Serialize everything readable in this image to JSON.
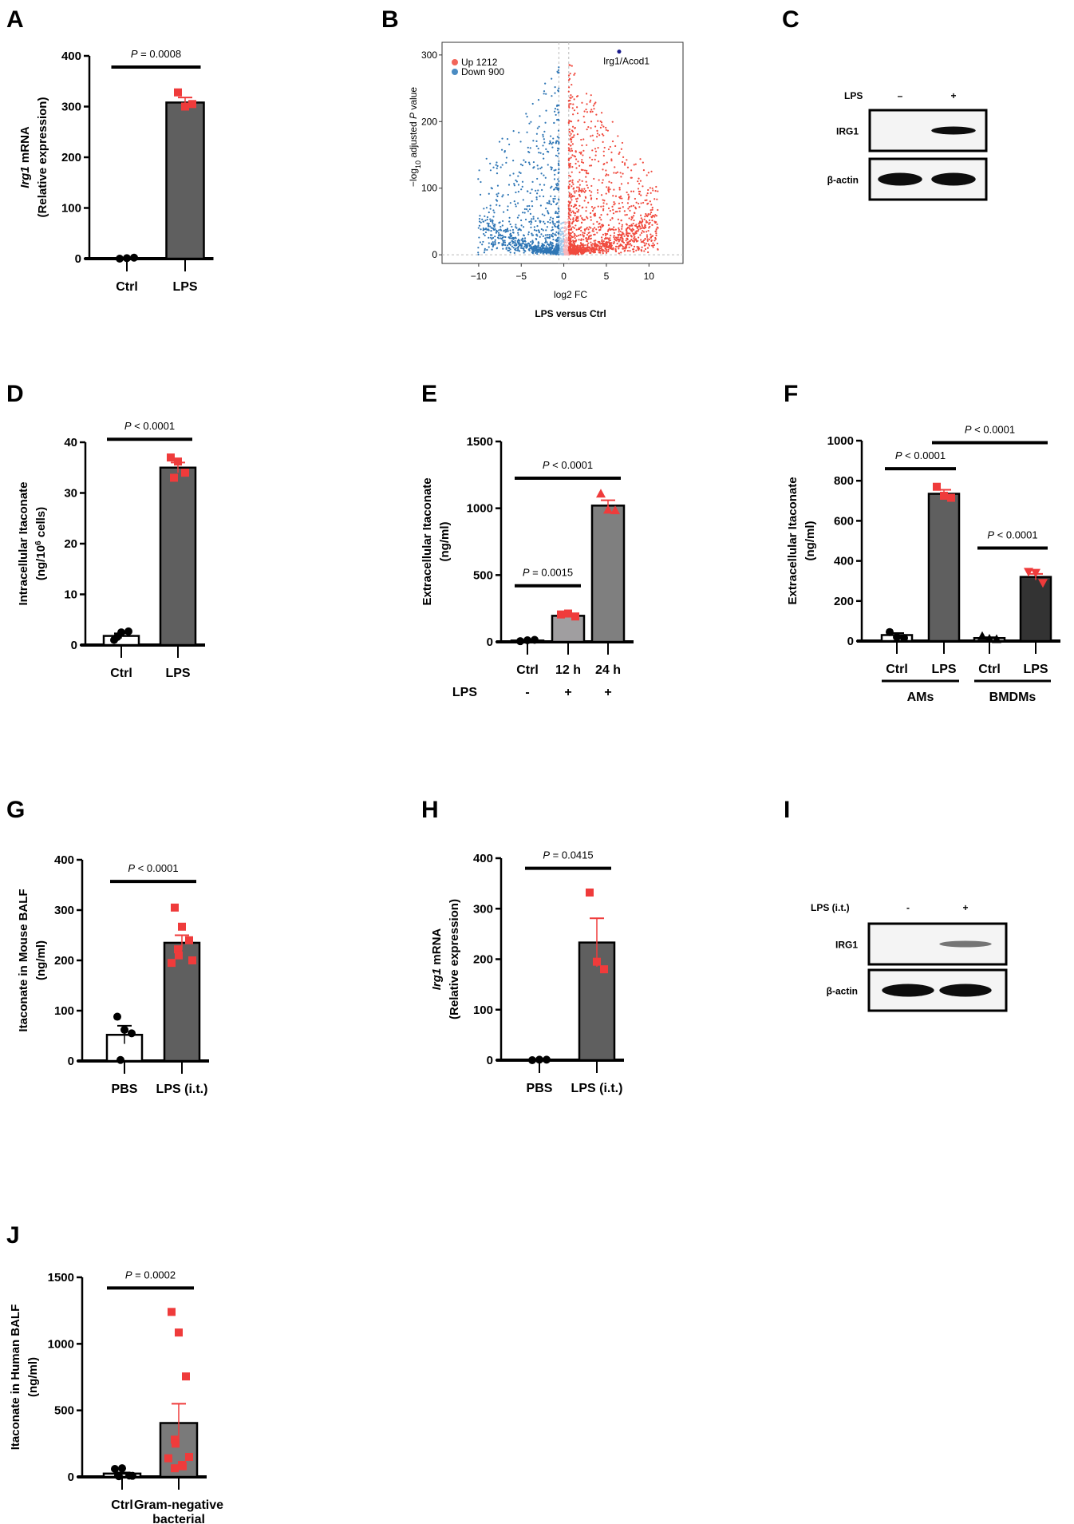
{
  "chart_data": [
    {
      "panel": "A",
      "type": "bar",
      "ylabel_lines": [
        [
          {
            "t": "Irg1",
            "i": true
          },
          {
            "t": " mRNA"
          }
        ],
        [
          {
            "t": "(Relative expression)"
          }
        ]
      ],
      "ylim": [
        0,
        400
      ],
      "yticks": [
        0,
        100,
        200,
        300,
        400
      ],
      "groups": [
        {
          "label": "Ctrl",
          "mean": 1,
          "sem": 0.5,
          "fill": "#ffffff",
          "marker": "circle",
          "marker_color": "#000000",
          "points": [
            0,
            1,
            2
          ]
        },
        {
          "label": "LPS",
          "mean": 308,
          "sem": 10,
          "fill": "#5f5f5f",
          "marker": "square",
          "marker_color": "#ef3b3b",
          "points": [
            328,
            300,
            305
          ]
        }
      ],
      "comparisons": [
        {
          "from": 0,
          "to": 1,
          "y": 378,
          "text": "= 0.0008"
        }
      ]
    },
    {
      "panel": "B",
      "type": "scatter",
      "xlabel": "log2 FC",
      "xlabel_base": "log",
      "xlabel_sub": "2",
      "xlabel_rest": " FC",
      "subtitle": "LPS versus Ctrl",
      "ylabel": "−log10 adjusted P value",
      "ylabel_parts": [
        "−log",
        "10",
        " adjusted ",
        "P",
        " value"
      ],
      "xlim": [
        -14.3,
        14
      ],
      "ylim": [
        -13,
        319
      ],
      "xticks": [
        -10,
        -5,
        0,
        5,
        10
      ],
      "xtick_labels": [
        "−10",
        "−5",
        "0",
        "5",
        "10"
      ],
      "yticks": [
        0,
        100,
        200,
        300
      ],
      "legend": [
        {
          "label": "Up 1212",
          "color": "#f2655a"
        },
        {
          "label": "Down 900",
          "color": "#4a8bc2"
        }
      ],
      "legend_position": "top-left",
      "up_color": "#f04a3e",
      "down_color": "#2f76b5",
      "ns_up_color": "#f6b8be",
      "ns_down_color": "#9cc6ea",
      "highlight": {
        "label": "Irg1/Acod1",
        "x": 6.5,
        "y": 305,
        "color": "#1a1a8c"
      },
      "thresholds": {
        "fc": 0.58,
        "p": 0
      }
    },
    {
      "panel": "D",
      "type": "bar",
      "ylabel_lines": [
        [
          {
            "t": "Intracellular Itaconate"
          }
        ],
        [
          {
            "t": "(ng/10"
          },
          {
            "t": "6",
            "sup": true
          },
          {
            "t": " cells)"
          }
        ]
      ],
      "ylim": [
        0,
        40
      ],
      "yticks": [
        0,
        10,
        20,
        30,
        40
      ],
      "groups": [
        {
          "label": "Ctrl",
          "mean": 1.8,
          "sem": 0.5,
          "fill": "#ffffff",
          "marker": "circle",
          "marker_color": "#000000",
          "points": [
            1.0,
            2.5,
            2.7,
            1.6
          ]
        },
        {
          "label": "LPS",
          "mean": 35,
          "sem": 1,
          "fill": "#5f5f5f",
          "marker": "square",
          "marker_color": "#ef3b3b",
          "points": [
            37,
            36.2,
            34,
            33
          ]
        }
      ],
      "comparisons": [
        {
          "from": 0,
          "to": 1,
          "y": 40.6,
          "text": "< 0.0001"
        }
      ]
    },
    {
      "panel": "E",
      "type": "bar",
      "ylabel_lines": [
        [
          {
            "t": "Extracellular Itaconate"
          }
        ],
        [
          {
            "t": "(ng/ml)"
          }
        ]
      ],
      "ylim": [
        0,
        1500
      ],
      "yticks": [
        0,
        500,
        1000,
        1500
      ],
      "groups": [
        {
          "label": "Ctrl",
          "lps": "-",
          "mean": 10,
          "sem": 3,
          "fill": "#ffffff",
          "marker": "circle",
          "marker_color": "#000000",
          "points": [
            5,
            12,
            15
          ]
        },
        {
          "label": "12 h",
          "lps": "+",
          "mean": 195,
          "sem": 8,
          "fill": "#a09ea0",
          "marker": "square",
          "marker_color": "#ef3b3b",
          "points": [
            205,
            212,
            190
          ]
        },
        {
          "label": "24 h",
          "lps": "+",
          "mean": 1020,
          "sem": 40,
          "fill": "#7f7f7f",
          "marker": "triangle",
          "marker_color": "#ef3b3b",
          "points": [
            1110,
            990,
            985
          ]
        }
      ],
      "row_label": "LPS",
      "comparisons": [
        {
          "from": 0,
          "to": 1,
          "y": 420,
          "text": "= 0.0015"
        },
        {
          "from": 0,
          "to": 2,
          "y": 1225,
          "text": "< 0.0001"
        }
      ]
    },
    {
      "panel": "F",
      "type": "bar",
      "ylabel_lines": [
        [
          {
            "t": "Extracellular Itaconate"
          }
        ],
        [
          {
            "t": "(ng/ml)"
          }
        ]
      ],
      "ylim": [
        0,
        1000
      ],
      "yticks": [
        0,
        200,
        400,
        600,
        800,
        1000
      ],
      "groups": [
        {
          "label": "Ctrl",
          "mean": 30,
          "sem": 10,
          "fill": "#ffffff",
          "marker": "circle",
          "marker_color": "#000000",
          "points": [
            45,
            20,
            15
          ]
        },
        {
          "label": "LPS",
          "mean": 735,
          "sem": 20,
          "fill": "#5f5f5f",
          "marker": "square",
          "marker_color": "#ef3b3b",
          "points": [
            770,
            725,
            715
          ]
        },
        {
          "label": "Ctrl",
          "mean": 15,
          "sem": 4,
          "fill": "#d9d9d9",
          "marker": "triangle",
          "marker_color": "#000000",
          "points": [
            25,
            12,
            10
          ]
        },
        {
          "label": "LPS",
          "mean": 320,
          "sem": 15,
          "fill": "#333333",
          "marker": "invtriangle",
          "marker_color": "#ef3b3b",
          "points": [
            345,
            340,
            290
          ]
        }
      ],
      "group_labels": [
        {
          "label": "AMs",
          "from": 0,
          "to": 1
        },
        {
          "label": "BMDMs",
          "from": 2,
          "to": 3
        }
      ],
      "comparisons": [
        {
          "from": 0,
          "to": 1,
          "y": 860,
          "text": "< 0.0001"
        },
        {
          "from": 1,
          "to": 3,
          "y": 990,
          "text": "< 0.0001"
        },
        {
          "from": 2,
          "to": 3,
          "y": 464,
          "text": "< 0.0001"
        }
      ]
    },
    {
      "panel": "G",
      "type": "bar",
      "ylabel_lines": [
        [
          {
            "t": "Itaconate in Mouse BALF"
          }
        ],
        [
          {
            "t": "(ng/ml)"
          }
        ]
      ],
      "ylim": [
        0,
        400
      ],
      "yticks": [
        0,
        100,
        200,
        300,
        400
      ],
      "groups": [
        {
          "label": "PBS",
          "mean": 52,
          "sem": 18,
          "fill": "#ffffff",
          "marker": "circle",
          "marker_color": "#000000",
          "points": [
            88,
            62,
            55,
            2
          ]
        },
        {
          "label": "LPS (i.t.)",
          "mean": 235,
          "sem": 15,
          "fill": "#5f5f5f",
          "marker": "square",
          "marker_color": "#ef3b3b",
          "points": [
            305,
            267,
            240,
            222,
            210,
            200,
            195
          ]
        }
      ],
      "comparisons": [
        {
          "from": 0,
          "to": 1,
          "y": 357,
          "text": "< 0.0001"
        }
      ]
    },
    {
      "panel": "H",
      "type": "bar",
      "ylabel_lines": [
        [
          {
            "t": "Irg1",
            "i": true
          },
          {
            "t": " mRNA"
          }
        ],
        [
          {
            "t": "(Relative expression)"
          }
        ]
      ],
      "ylim": [
        0,
        400
      ],
      "yticks": [
        0,
        100,
        200,
        300,
        400
      ],
      "groups": [
        {
          "label": "PBS",
          "mean": 1,
          "sem": 0.5,
          "fill": "#ffffff",
          "marker": "circle",
          "marker_color": "#000000",
          "points": [
            0,
            1,
            1
          ]
        },
        {
          "label": "LPS (i.t.)",
          "mean": 233,
          "sem": 48,
          "fill": "#5f5f5f",
          "marker": "square",
          "marker_color": "#ef3b3b",
          "points": [
            332,
            195,
            180
          ]
        }
      ],
      "comparisons": [
        {
          "from": 0,
          "to": 1,
          "y": 380,
          "text": "= 0.0415"
        }
      ]
    },
    {
      "panel": "J",
      "type": "bar",
      "ylabel_lines": [
        [
          {
            "t": "Itaconate in Human BALF"
          }
        ],
        [
          {
            "t": "(ng/ml)"
          }
        ]
      ],
      "ylim": [
        0,
        1500
      ],
      "yticks": [
        0,
        500,
        1000,
        1500
      ],
      "groups": [
        {
          "label": "Ctrl",
          "mean": 25,
          "sem": 8,
          "fill": "#ffffff",
          "marker": "circle",
          "marker_color": "#000000",
          "points": [
            60,
            65,
            10,
            10,
            5,
            8
          ]
        },
        {
          "label": "Gram-negative",
          "label2": "bacterial",
          "mean": 405,
          "sem": 145,
          "fill": "#7a7a7a",
          "marker": "square",
          "marker_color": "#ef3b3b",
          "points": [
            1240,
            1085,
            755,
            280,
            250,
            150,
            140,
            90,
            80,
            65
          ]
        }
      ],
      "comparisons": [
        {
          "from": 0,
          "to": 1,
          "y": 1420,
          "text": "= 0.0002"
        }
      ]
    }
  ],
  "blots": [
    {
      "panel": "C",
      "condition_label": "LPS",
      "lanes": [
        "–",
        "+"
      ],
      "rows": [
        {
          "label": "IRG1",
          "bands": [
            0,
            1
          ]
        },
        {
          "label": "β-actin",
          "bands": [
            1,
            1
          ]
        }
      ]
    },
    {
      "panel": "I",
      "condition_label": "LPS (i.t.)",
      "lanes": [
        "-",
        "+"
      ],
      "rows": [
        {
          "label": "IRG1",
          "bands": [
            0,
            0.6
          ]
        },
        {
          "label": "β-actin",
          "bands": [
            1,
            1
          ]
        }
      ]
    }
  ],
  "p_prefix": "P"
}
